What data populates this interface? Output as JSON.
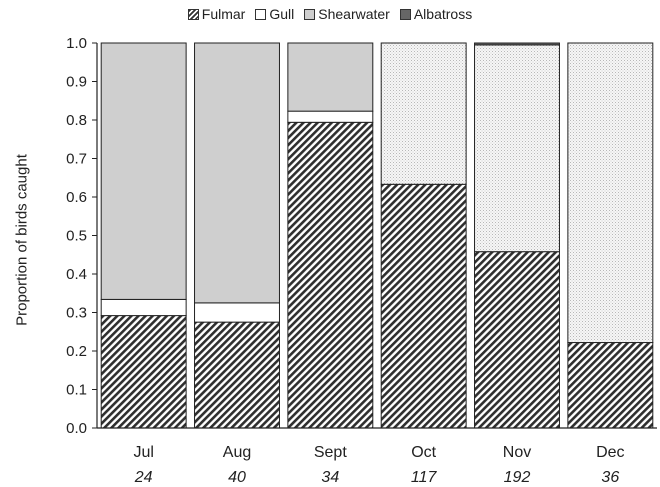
{
  "chart_data": {
    "type": "bar",
    "stacked": true,
    "normalized": true,
    "categories": [
      "Jul",
      "Aug",
      "Sept",
      "Oct",
      "Nov",
      "Dec"
    ],
    "sample_sizes": [
      "24",
      "40",
      "34",
      "117",
      "192",
      "36"
    ],
    "series": [
      {
        "name": "Fulmar",
        "values": [
          0.292,
          0.275,
          0.794,
          0.633,
          0.458,
          0.222
        ]
      },
      {
        "name": "Gull",
        "values": [
          0.042,
          0.05,
          0.029,
          0.0,
          0.0,
          0.0
        ]
      },
      {
        "name": "Shearwater",
        "values": [
          0.666,
          0.675,
          0.177,
          0.367,
          0.537,
          0.778
        ]
      },
      {
        "name": "Albatross",
        "values": [
          0.0,
          0.0,
          0.0,
          0.0,
          0.005,
          0.0
        ]
      }
    ],
    "series_fills": {
      "Fulmar": "hatch-dark",
      "Gull": "#ffffff",
      "Shearwater": "#cfcfcf",
      "Albatross": "#666666"
    },
    "segment_fills": [
      [
        "hatch",
        "white",
        "grey",
        "dark"
      ],
      [
        "hatch",
        "white",
        "grey",
        "dark"
      ],
      [
        "hatch",
        "white",
        "grey",
        "dark"
      ],
      [
        "hatch",
        "white",
        "dots",
        "dark"
      ],
      [
        "hatch",
        "white",
        "dots",
        "dark"
      ],
      [
        "hatch",
        "white",
        "dots",
        "dark"
      ]
    ],
    "ylabel": "Proportion of birds caught",
    "xlabel": "",
    "ylim": [
      0,
      1.0
    ],
    "yticks": [
      "0.0",
      "0.1",
      "0.2",
      "0.3",
      "0.4",
      "0.5",
      "0.6",
      "0.7",
      "0.8",
      "0.9",
      "1.0"
    ],
    "legend_position": "top-center",
    "grid": false
  }
}
